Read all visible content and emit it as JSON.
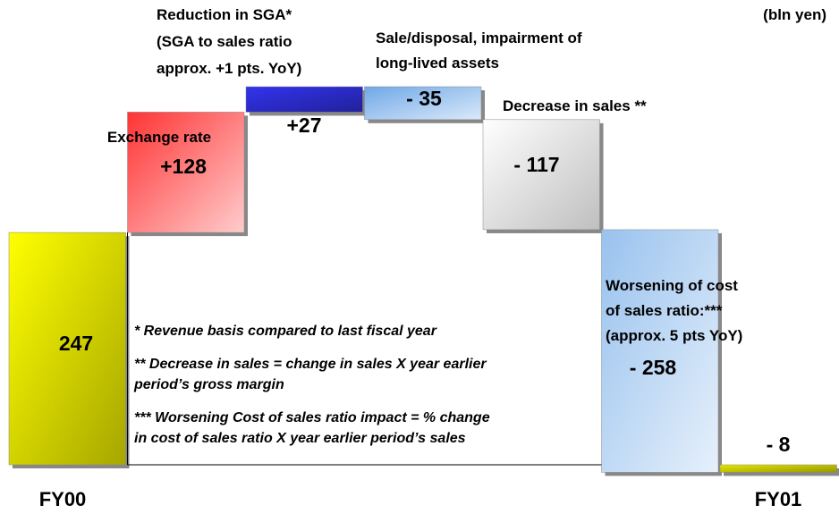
{
  "chart_data": {
    "type": "waterfall",
    "unit": "(bln yen)",
    "categories": [
      "FY00",
      "Exchange rate",
      "Reduction in SGA*\n(SGA to sales ratio\napprox. +1 pts. YoY)",
      "Sale/disposal, impairment of\nlong-lived assets",
      "Decrease in sales **",
      "Worsening of cost\nof sales ratio:***\n(approx. 5 pts YoY)",
      "FY01"
    ],
    "values": [
      247,
      128,
      27,
      -35,
      -117,
      -258,
      -8
    ],
    "value_labels": [
      "247",
      "+128",
      "+27",
      "- 35",
      "- 117",
      "- 258",
      "- 8"
    ],
    "colors": [
      "#ffff00",
      "#ff3333",
      "#3333ee",
      "#6fa8e8",
      "#d9d9d9",
      "#99c2ee",
      "#e6e600"
    ],
    "notes": [
      "* Revenue basis compared to last fiscal year",
      "** Decrease in sales = change in sales X year earlier\nperiod’s gross margin",
      "*** Worsening Cost of sales ratio impact = % change\nin cost of sales ratio X year earlier period’s sales"
    ]
  }
}
